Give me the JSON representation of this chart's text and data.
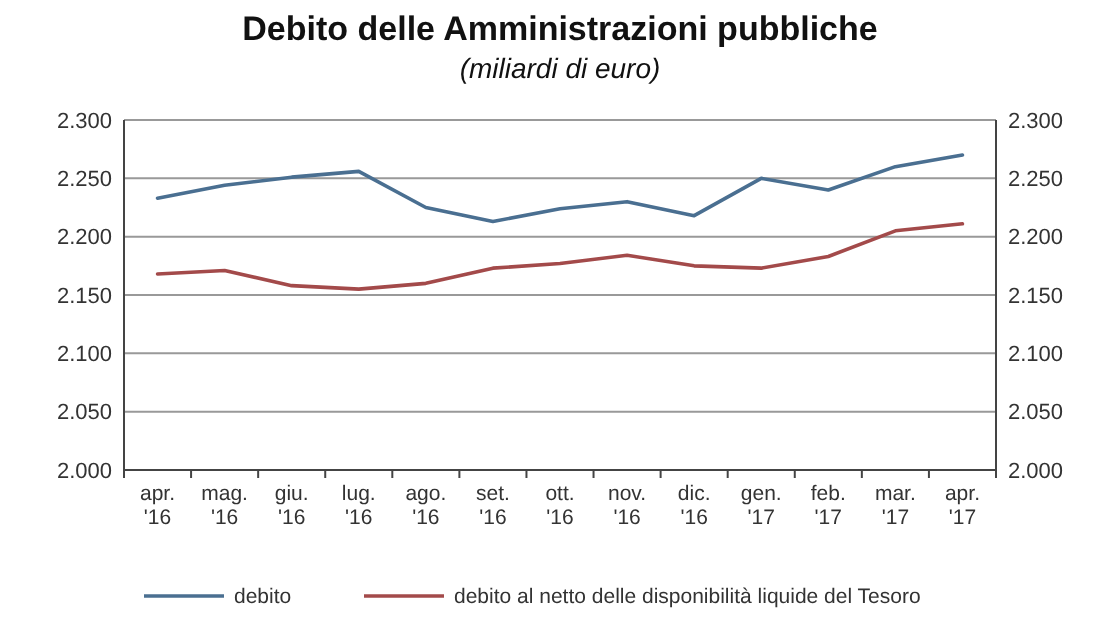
{
  "chart_data": {
    "type": "line",
    "title": "Debito delle Amministrazioni pubbliche",
    "subtitle": "(miliardi di euro)",
    "categories": [
      "apr. '16",
      "mag. '16",
      "giu. '16",
      "lug. '16",
      "ago. '16",
      "set. '16",
      "ott. '16",
      "nov. '16",
      "dic. '16",
      "gen. '17",
      "feb. '17",
      "mar. '17",
      "apr. '17"
    ],
    "series": [
      {
        "name": "debito",
        "color": "#4a6f91",
        "values": [
          2233,
          2244,
          2251,
          2256,
          2225,
          2213,
          2224,
          2230,
          2218,
          2250,
          2240,
          2260,
          2270
        ]
      },
      {
        "name": "debito al netto delle disponibilità liquide del Tesoro",
        "color": "#a34a4a",
        "values": [
          2168,
          2171,
          2158,
          2155,
          2160,
          2173,
          2177,
          2184,
          2175,
          2173,
          2183,
          2205,
          2211
        ]
      }
    ],
    "ylim": [
      2000,
      2300
    ],
    "yticks": [
      {
        "value": 2000,
        "label": "2.000"
      },
      {
        "value": 2050,
        "label": "2.050"
      },
      {
        "value": 2100,
        "label": "2.100"
      },
      {
        "value": 2150,
        "label": "2.150"
      },
      {
        "value": 2200,
        "label": "2.200"
      },
      {
        "value": 2250,
        "label": "2.250"
      },
      {
        "value": 2300,
        "label": "2.300"
      }
    ],
    "y2lim": [
      2000,
      2300
    ],
    "y2ticks": [
      {
        "value": 2000,
        "label": "2.000"
      },
      {
        "value": 2050,
        "label": "2.050"
      },
      {
        "value": 2100,
        "label": "2.100"
      },
      {
        "value": 2150,
        "label": "2.150"
      },
      {
        "value": 2200,
        "label": "2.200"
      },
      {
        "value": 2250,
        "label": "2.250"
      },
      {
        "value": 2300,
        "label": "2.300"
      }
    ],
    "grid": "y",
    "legend": "bottom",
    "line_style": "solid"
  }
}
